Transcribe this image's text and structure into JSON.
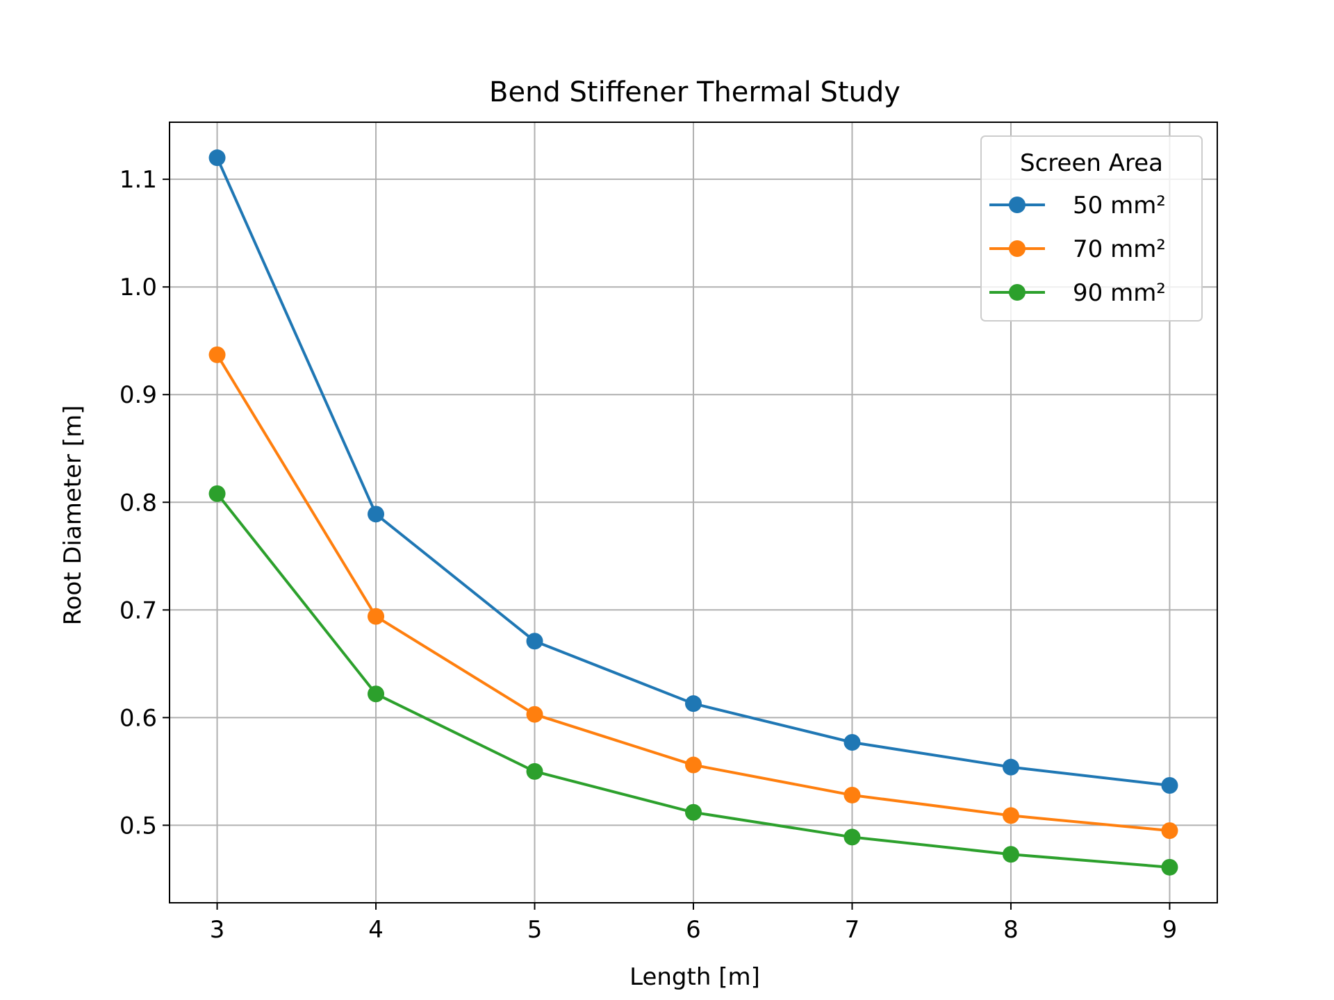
{
  "chart_data": {
    "type": "line",
    "title": "Bend Stiffener Thermal Study",
    "xlabel": "Length [m]",
    "ylabel": "Root Diameter [m]",
    "x": [
      3,
      4,
      5,
      6,
      7,
      8,
      9
    ],
    "xlim": [
      2.7,
      9.3
    ],
    "ylim": [
      0.428,
      1.153
    ],
    "xticks": [
      3,
      4,
      5,
      6,
      7,
      8,
      9
    ],
    "yticks": [
      0.5,
      0.6,
      0.7,
      0.8,
      0.9,
      1.0,
      1.1
    ],
    "ytick_labels": [
      "0.5",
      "0.6",
      "0.7",
      "0.8",
      "0.9",
      "1.0",
      "1.1"
    ],
    "grid": true,
    "legend": {
      "title": "Screen Area",
      "placement": "top-right"
    },
    "series": [
      {
        "name": "50 mm²",
        "color": "#1f77b4",
        "values": [
          1.12,
          0.789,
          0.671,
          0.613,
          0.577,
          0.554,
          0.537
        ]
      },
      {
        "name": "70 mm²",
        "color": "#ff7f0e",
        "values": [
          0.937,
          0.694,
          0.603,
          0.556,
          0.528,
          0.509,
          0.495
        ]
      },
      {
        "name": "90 mm²",
        "color": "#2ca02c",
        "values": [
          0.808,
          0.622,
          0.55,
          0.512,
          0.489,
          0.473,
          0.461
        ]
      }
    ]
  }
}
